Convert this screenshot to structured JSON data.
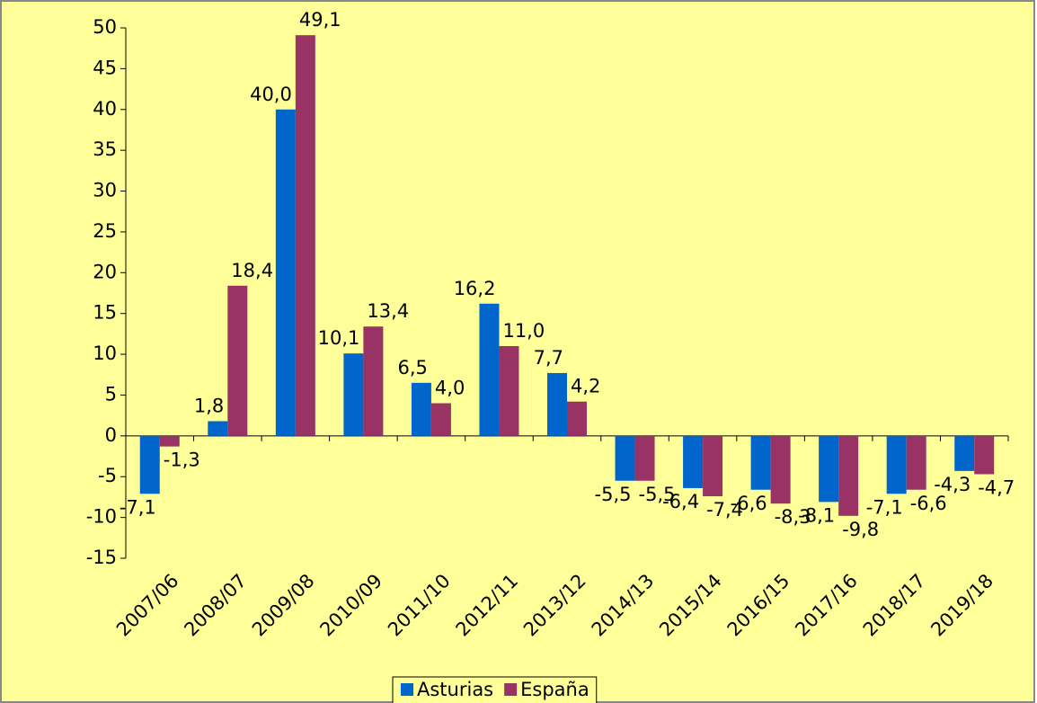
{
  "chart_data": {
    "type": "bar",
    "categories": [
      "2007/06",
      "2008/07",
      "2009/08",
      "2010/09",
      "2011/10",
      "2012/11",
      "2013/12",
      "2014/13",
      "2015/14",
      "2016/15",
      "2017/16",
      "2018/17",
      "2019/18"
    ],
    "series": [
      {
        "name": "Asturias",
        "color": "#0066cc",
        "values": [
          -7.1,
          1.8,
          40.0,
          10.1,
          6.5,
          16.2,
          7.7,
          -5.5,
          -6.4,
          -6.6,
          -8.1,
          -7.1,
          -4.3
        ],
        "value_labels": [
          "-7,1",
          "1,8",
          "40,0",
          "10,1",
          "6,5",
          "16,2",
          "7,7",
          "-5,5",
          "-6,4",
          "-6,6",
          "-8,1",
          "-7,1",
          "-4,3"
        ]
      },
      {
        "name": "España",
        "color": "#993366",
        "values": [
          -1.3,
          18.4,
          49.1,
          13.4,
          4.0,
          11.0,
          4.2,
          -5.5,
          -7.4,
          -8.3,
          -9.8,
          -6.6,
          -4.7
        ],
        "value_labels": [
          "-1,3",
          "18,4",
          "49,1",
          "13,4",
          "4,0",
          "11,0",
          "4,2",
          "-5,5",
          "-7,4",
          "-8,3",
          "-9,8",
          "-6,6",
          "-4,7"
        ]
      }
    ],
    "ylim": [
      -15,
      50
    ],
    "yticks": [
      -15,
      -10,
      -5,
      0,
      5,
      10,
      15,
      20,
      25,
      30,
      35,
      40,
      45,
      50
    ],
    "legend": "bottom"
  }
}
